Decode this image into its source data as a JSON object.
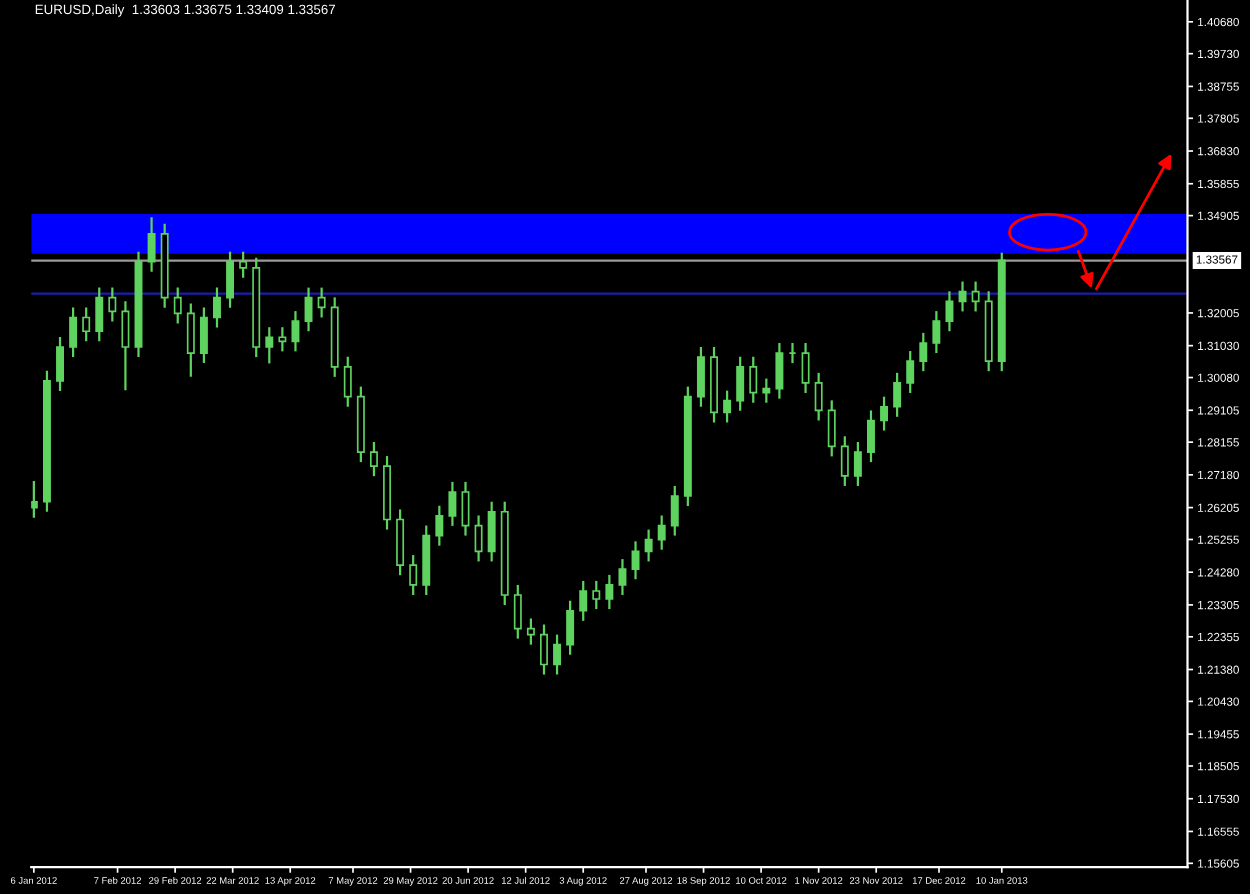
{
  "chart_data": {
    "type": "candlestick",
    "title": "EURUSD,Daily  1.33603 1.33675 1.33409 1.33567",
    "color": "#5fd35f",
    "x": [
      "2012-01-06",
      "2012-01-11",
      "2012-01-16",
      "2012-01-21",
      "2012-01-26",
      "2012-01-31",
      "2012-02-05",
      "2012-02-10",
      "2012-02-15",
      "2012-02-20",
      "2012-02-25",
      "2012-03-01",
      "2012-03-06",
      "2012-03-11",
      "2012-03-16",
      "2012-03-21",
      "2012-03-26",
      "2012-03-31",
      "2012-04-05",
      "2012-04-10",
      "2012-04-15",
      "2012-04-20",
      "2012-04-25",
      "2012-04-30",
      "2012-05-05",
      "2012-05-10",
      "2012-05-15",
      "2012-05-20",
      "2012-05-25",
      "2012-05-30",
      "2012-06-04",
      "2012-06-09",
      "2012-06-14",
      "2012-06-19",
      "2012-06-24",
      "2012-06-29",
      "2012-07-04",
      "2012-07-09",
      "2012-07-14",
      "2012-07-19",
      "2012-07-24",
      "2012-07-29",
      "2012-08-03",
      "2012-08-08",
      "2012-08-13",
      "2012-08-18",
      "2012-08-23",
      "2012-08-28",
      "2012-09-02",
      "2012-09-07",
      "2012-09-12",
      "2012-09-17",
      "2012-09-22",
      "2012-09-27",
      "2012-10-02",
      "2012-10-07",
      "2012-10-12",
      "2012-10-17",
      "2012-10-22",
      "2012-10-27",
      "2012-11-01",
      "2012-11-06",
      "2012-11-11",
      "2012-11-16",
      "2012-11-21",
      "2012-11-26",
      "2012-12-01",
      "2012-12-06",
      "2012-12-11",
      "2012-12-16",
      "2012-12-21",
      "2012-12-26",
      "2012-12-31",
      "2013-01-05",
      "2013-01-10"
    ],
    "ohlc": [
      [
        1.262,
        1.27,
        1.259,
        1.2638
      ],
      [
        1.2638,
        1.3028,
        1.2608,
        1.2998
      ],
      [
        1.2998,
        1.3129,
        1.2968,
        1.3099
      ],
      [
        1.3099,
        1.3217,
        1.3069,
        1.3187
      ],
      [
        1.3187,
        1.3217,
        1.3116,
        1.3146
      ],
      [
        1.3146,
        1.3276,
        1.3116,
        1.3246
      ],
      [
        1.3246,
        1.3276,
        1.3175,
        1.3205
      ],
      [
        1.3205,
        1.3235,
        1.297,
        1.3099
      ],
      [
        1.3099,
        1.3383,
        1.3069,
        1.3353
      ],
      [
        1.3353,
        1.3486,
        1.3323,
        1.3436
      ],
      [
        1.3436,
        1.3466,
        1.3216,
        1.3246
      ],
      [
        1.3246,
        1.3276,
        1.3169,
        1.3199
      ],
      [
        1.3199,
        1.3229,
        1.301,
        1.3081
      ],
      [
        1.3081,
        1.3217,
        1.3051,
        1.3187
      ],
      [
        1.3187,
        1.3276,
        1.3157,
        1.3246
      ],
      [
        1.3246,
        1.3383,
        1.3216,
        1.3353
      ],
      [
        1.3353,
        1.3383,
        1.3305,
        1.3335
      ],
      [
        1.3335,
        1.3365,
        1.3069,
        1.3099
      ],
      [
        1.3099,
        1.3158,
        1.305,
        1.3128
      ],
      [
        1.3128,
        1.3158,
        1.3086,
        1.3116
      ],
      [
        1.3116,
        1.3206,
        1.3086,
        1.3176
      ],
      [
        1.3176,
        1.3276,
        1.3146,
        1.3246
      ],
      [
        1.3246,
        1.3276,
        1.3187,
        1.3217
      ],
      [
        1.3217,
        1.3247,
        1.301,
        1.304
      ],
      [
        1.304,
        1.307,
        1.2921,
        1.2951
      ],
      [
        1.2951,
        1.2981,
        1.2756,
        1.2786
      ],
      [
        1.2786,
        1.2816,
        1.2714,
        1.2744
      ],
      [
        1.2744,
        1.2774,
        1.2555,
        1.2585
      ],
      [
        1.2585,
        1.2615,
        1.2419,
        1.2449
      ],
      [
        1.2449,
        1.2479,
        1.236,
        1.239
      ],
      [
        1.239,
        1.2567,
        1.236,
        1.2537
      ],
      [
        1.2537,
        1.2626,
        1.2507,
        1.2596
      ],
      [
        1.2596,
        1.2697,
        1.2566,
        1.2667
      ],
      [
        1.2667,
        1.2697,
        1.2537,
        1.2567
      ],
      [
        1.2567,
        1.2597,
        1.246,
        1.249
      ],
      [
        1.249,
        1.2638,
        1.246,
        1.2608
      ],
      [
        1.2608,
        1.2638,
        1.233,
        1.236
      ],
      [
        1.236,
        1.239,
        1.223,
        1.226
      ],
      [
        1.226,
        1.229,
        1.2212,
        1.2242
      ],
      [
        1.2242,
        1.2272,
        1.2123,
        1.2153
      ],
      [
        1.2153,
        1.2242,
        1.2123,
        1.2212
      ],
      [
        1.2212,
        1.2343,
        1.2182,
        1.2313
      ],
      [
        1.2313,
        1.2402,
        1.2283,
        1.2372
      ],
      [
        1.2372,
        1.2402,
        1.2318,
        1.2348
      ],
      [
        1.2348,
        1.242,
        1.2318,
        1.239
      ],
      [
        1.239,
        1.2467,
        1.236,
        1.2437
      ],
      [
        1.2437,
        1.252,
        1.2407,
        1.249
      ],
      [
        1.249,
        1.2555,
        1.246,
        1.2525
      ],
      [
        1.2525,
        1.2597,
        1.2495,
        1.2567
      ],
      [
        1.2567,
        1.2685,
        1.2537,
        1.2655
      ],
      [
        1.2655,
        1.2981,
        1.2625,
        1.2951
      ],
      [
        1.2951,
        1.3099,
        1.2921,
        1.3069
      ],
      [
        1.3069,
        1.3099,
        1.2874,
        1.2904
      ],
      [
        1.2904,
        1.2969,
        1.2874,
        1.2939
      ],
      [
        1.2939,
        1.307,
        1.2909,
        1.304
      ],
      [
        1.304,
        1.307,
        1.2933,
        1.2963
      ],
      [
        1.2963,
        1.3005,
        1.2933,
        1.2975
      ],
      [
        1.2975,
        1.3111,
        1.2945,
        1.3081
      ],
      [
        1.3081,
        1.3111,
        1.3051,
        1.3081
      ],
      [
        1.3081,
        1.3111,
        1.2962,
        1.2992
      ],
      [
        1.2992,
        1.3022,
        1.288,
        1.291
      ],
      [
        1.291,
        1.294,
        1.2773,
        1.2803
      ],
      [
        1.2803,
        1.2833,
        1.2685,
        1.2715
      ],
      [
        1.2715,
        1.2816,
        1.2685,
        1.2786
      ],
      [
        1.2786,
        1.291,
        1.2756,
        1.288
      ],
      [
        1.288,
        1.2951,
        1.285,
        1.2921
      ],
      [
        1.2921,
        1.3022,
        1.2891,
        1.2992
      ],
      [
        1.2992,
        1.3087,
        1.2962,
        1.3057
      ],
      [
        1.3057,
        1.3141,
        1.3027,
        1.3111
      ],
      [
        1.3111,
        1.3206,
        1.3081,
        1.3176
      ],
      [
        1.3176,
        1.3265,
        1.3146,
        1.3235
      ],
      [
        1.3235,
        1.3294,
        1.3205,
        1.3264
      ],
      [
        1.3264,
        1.3294,
        1.3205,
        1.3235
      ],
      [
        1.3235,
        1.3265,
        1.3027,
        1.3057
      ],
      [
        1.3057,
        1.338,
        1.3027,
        1.3357
      ]
    ],
    "xlim": [
      "2012-01-05",
      "2013-03-22"
    ],
    "xticks": [
      {
        "value": "2012-01-06",
        "label": "6 Jan 2012"
      },
      {
        "value": "2012-02-07",
        "label": "7 Feb 2012"
      },
      {
        "value": "2012-02-29",
        "label": "29 Feb 2012"
      },
      {
        "value": "2012-03-22",
        "label": "22 Mar 2012"
      },
      {
        "value": "2012-04-13",
        "label": "13 Apr 2012"
      },
      {
        "value": "2012-05-07",
        "label": "7 May 2012"
      },
      {
        "value": "2012-05-29",
        "label": "29 May 2012"
      },
      {
        "value": "2012-06-20",
        "label": "20 Jun 2012"
      },
      {
        "value": "2012-07-12",
        "label": "12 Jul 2012"
      },
      {
        "value": "2012-08-03",
        "label": "3 Aug 2012"
      },
      {
        "value": "2012-08-27",
        "label": "27 Aug 2012"
      },
      {
        "value": "2012-09-18",
        "label": "18 Sep 2012"
      },
      {
        "value": "2012-10-10",
        "label": "10 Oct 2012"
      },
      {
        "value": "2012-11-01",
        "label": "1 Nov 2012"
      },
      {
        "value": "2012-11-23",
        "label": "23 Nov 2012"
      },
      {
        "value": "2012-12-17",
        "label": "17 Dec 2012"
      },
      {
        "value": "2013-01-10",
        "label": "10 Jan 2013"
      }
    ],
    "ylim": [
      1.1549,
      1.4133
    ],
    "yticks": [
      {
        "value": 1.4068,
        "label": "1.40680"
      },
      {
        "value": 1.3973,
        "label": "1.39730"
      },
      {
        "value": 1.38755,
        "label": "1.38755"
      },
      {
        "value": 1.37805,
        "label": "1.37805"
      },
      {
        "value": 1.3683,
        "label": "1.36830"
      },
      {
        "value": 1.35855,
        "label": "1.35855"
      },
      {
        "value": 1.34905,
        "label": "1.34905"
      },
      {
        "value": 1.32005,
        "label": "1.32005"
      },
      {
        "value": 1.3103,
        "label": "1.31030"
      },
      {
        "value": 1.3008,
        "label": "1.30080"
      },
      {
        "value": 1.29105,
        "label": "1.29105"
      },
      {
        "value": 1.28155,
        "label": "1.28155"
      },
      {
        "value": 1.2718,
        "label": "1.27180"
      },
      {
        "value": 1.26205,
        "label": "1.26205"
      },
      {
        "value": 1.25255,
        "label": "1.25255"
      },
      {
        "value": 1.2428,
        "label": "1.24280"
      },
      {
        "value": 1.23305,
        "label": "1.23305"
      },
      {
        "value": 1.22355,
        "label": "1.22355"
      },
      {
        "value": 1.2138,
        "label": "1.21380"
      },
      {
        "value": 1.2043,
        "label": "1.20430"
      },
      {
        "value": 1.19455,
        "label": "1.19455"
      },
      {
        "value": 1.18505,
        "label": "1.18505"
      },
      {
        "value": 1.1753,
        "label": "1.17530"
      },
      {
        "value": 1.16555,
        "label": "1.16555"
      },
      {
        "value": 1.15605,
        "label": "1.15605"
      }
    ],
    "bands": [
      {
        "axis": "y",
        "from": 1.3377,
        "to": 1.3495,
        "color": "#0000ff"
      }
    ],
    "ref_lines": [
      {
        "axis": "y",
        "value": 1.33567,
        "label": "1.33567",
        "color": "#9a9a9a"
      },
      {
        "axis": "y",
        "value": 1.3258,
        "color": "#1c1cb0"
      }
    ]
  }
}
